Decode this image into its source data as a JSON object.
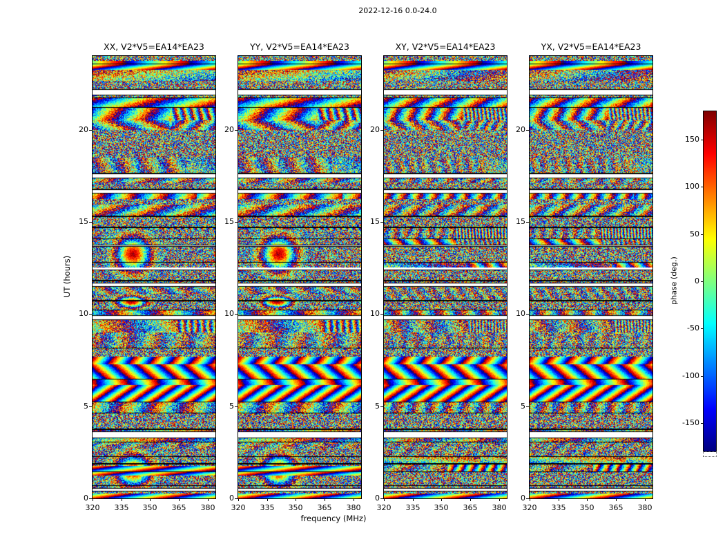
{
  "figure": {
    "title": "2022-12-16 0.0-24.0"
  },
  "chart_data": {
    "type": "heatmap",
    "title": "2022-12-16 0.0-24.0",
    "xlabel": "frequency (MHz)",
    "ylabel": "UT (hours)",
    "x_range_mhz": [
      320,
      384
    ],
    "x_ticks": [
      320,
      335,
      350,
      365,
      380
    ],
    "y_range_hours": [
      0,
      24
    ],
    "y_ticks": [
      0,
      5,
      10,
      15,
      20
    ],
    "colormap": "jet",
    "grid": false,
    "colorbar": {
      "label": "phase (deg.)",
      "vmin": -180,
      "vmax": 180,
      "ticks": [
        150,
        100,
        50,
        0,
        -50,
        -100,
        -150
      ]
    },
    "panels": [
      {
        "label": "XX",
        "title": "XX, V2*V5=EA14*EA23",
        "kind": "parallel",
        "seed": 101
      },
      {
        "label": "YY",
        "title": "YY, V2*V5=EA14*EA23",
        "kind": "parallel",
        "seed": 202
      },
      {
        "label": "XY",
        "title": "XY, V2*V5=EA14*EA23",
        "kind": "cross",
        "seed": 303
      },
      {
        "label": "YX",
        "title": "YX, V2*V5=EA14*EA23",
        "kind": "cross",
        "seed": 404
      }
    ],
    "content_note": "Waterfall plots of interferometric visibility phase (deg) for baseline V2*V5=EA14*EA23 over 0-24 UT hours vs 320-384 MHz; mostly wrapped phase noise in scan-separated horizontal bands, with coherent fringe stripes and smooth rainbow phase blobs (near 335-355 MHz) visible in the parallel-hand XX/YY panels around 0-2.5 h and 12-14.5 h, and strong diagonal fringes in all panels near 5-7.5 h.",
    "noise_model": {
      "structure_seed": 20221216,
      "special_regions": [
        {
          "h0": 23.25,
          "h1": 23.75,
          "mode": "smoothband",
          "apply": "all"
        },
        {
          "h0": 1.25,
          "h1": 1.75,
          "mode": "smoothband",
          "apply": "parallel"
        },
        {
          "h0": 11.9,
          "h1": 14.6,
          "mode": "blob",
          "apply": "parallel",
          "cx": 341,
          "sx": 8
        },
        {
          "h0": 10.2,
          "h1": 11.1,
          "mode": "blob",
          "apply": "parallel",
          "cx": 340,
          "sx": 7
        },
        {
          "h0": 5.2,
          "h1": 7.7,
          "mode": "fringes",
          "apply": "all"
        },
        {
          "h0": 0.3,
          "h1": 2.7,
          "mode": "blob",
          "apply": "parallel",
          "cx": 341,
          "sx": 8
        },
        {
          "h0": 0.0,
          "h1": 0.28,
          "mode": "smoothband",
          "apply": "all"
        }
      ],
      "gaps": [
        {
          "h": 21.95,
          "dh": 0.22
        },
        {
          "h": 17.45,
          "dh": 0.12
        },
        {
          "h": 11.55,
          "dh": 0.1
        },
        {
          "h": 9.75,
          "dh": 0.14
        },
        {
          "h": 3.35,
          "dh": 0.25
        },
        {
          "h": 0.45,
          "dh": 0.08
        }
      ]
    }
  }
}
